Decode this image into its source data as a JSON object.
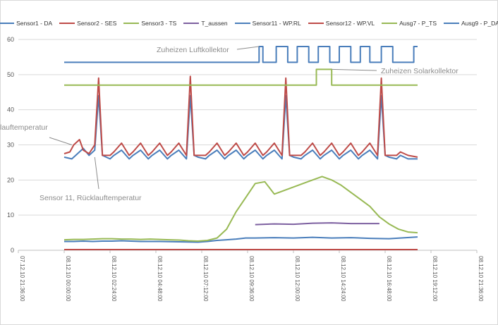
{
  "chart_data": {
    "type": "line",
    "title": "",
    "xlabel": "",
    "ylabel": "",
    "ylim": [
      0,
      60
    ],
    "y_ticks": [
      "0",
      "10",
      "20",
      "30",
      "40",
      "50",
      "60"
    ],
    "x_tick_labels": [
      "07.12.10 21:36:00",
      "08.12.10 00:00:00",
      "08.12.10 02:24:00",
      "08.12.10 04:48:00",
      "08.12.10 07:12:00",
      "08.12.10 09:36:00",
      "08.12.10 12:00:00",
      "08.12.10 14:24:00",
      "08.12.10 16:48:00",
      "08.12.10 19:12:00",
      "08.12.10 21:36:00"
    ],
    "x_range_hours": [
      -2.4,
      21.6
    ],
    "grid": "horizontal",
    "legend_position": "top",
    "series": [
      {
        "name": "Sensor1 - DA",
        "color": "#4a7ebb",
        "x": [
          0,
          0.5,
          1,
          1.5,
          2,
          2.5,
          3,
          3.5,
          4,
          5,
          6,
          7,
          7.5,
          8,
          8.5,
          9,
          9.5,
          10,
          11,
          12,
          13,
          14,
          15,
          16,
          17,
          18.5
        ],
        "y": [
          2.5,
          2.5,
          2.6,
          2.5,
          2.6,
          2.6,
          2.7,
          2.6,
          2.5,
          2.5,
          2.4,
          2.3,
          2.5,
          2.8,
          3.0,
          3.2,
          3.5,
          3.5,
          3.6,
          3.5,
          3.7,
          3.5,
          3.6,
          3.4,
          3.3,
          3.8
        ]
      },
      {
        "name": "Sensor2 - SES",
        "color": "#be4b48",
        "x": [
          0,
          18.5
        ],
        "y": [
          0.2,
          0.2
        ]
      },
      {
        "name": "Sensor3 - TS",
        "color": "#98b954",
        "x": [
          0,
          0.5,
          1,
          1.5,
          2,
          2.5,
          3,
          3.5,
          4,
          4.5,
          5,
          5.5,
          6,
          6.5,
          7,
          7.5,
          8,
          8.5,
          9,
          9.5,
          10,
          10.5,
          11,
          11.5,
          12,
          12.5,
          13,
          13.5,
          14,
          14.5,
          15,
          15.5,
          16,
          16.5,
          17,
          17.5,
          18,
          18.5
        ],
        "y": [
          3.0,
          3.1,
          3.1,
          3.2,
          3.3,
          3.3,
          3.2,
          3.2,
          3.1,
          3.2,
          3.1,
          3.0,
          2.9,
          2.7,
          2.6,
          2.8,
          3.5,
          6.0,
          11.0,
          15.0,
          19.0,
          19.5,
          16.0,
          17.0,
          18.0,
          19.0,
          20.0,
          21.0,
          20.0,
          18.5,
          16.5,
          14.5,
          12.5,
          9.5,
          7.5,
          6.0,
          5.2,
          5.0
        ]
      },
      {
        "name": "T_aussen",
        "color": "#7d60a0",
        "x": [
          10,
          11,
          12,
          13,
          14,
          15,
          16,
          16.5
        ],
        "y": [
          7.3,
          7.5,
          7.4,
          7.7,
          7.8,
          7.6,
          7.6,
          7.6
        ]
      },
      {
        "name": "Sensor11 - WP.RL",
        "color": "#4a7ebb",
        "x": [
          0,
          0.4,
          0.6,
          1.0,
          1.3,
          1.6,
          1.8,
          2.0,
          2.4,
          2.6,
          3.0,
          3.4,
          3.6,
          4.0,
          4.4,
          4.6,
          5.0,
          5.4,
          5.6,
          6.0,
          6.4,
          6.6,
          6.8,
          7.0,
          7.4,
          7.6,
          8.0,
          8.4,
          8.6,
          9.0,
          9.4,
          9.6,
          10.0,
          10.4,
          10.6,
          11.0,
          11.4,
          11.6,
          11.8,
          12.0,
          12.4,
          12.6,
          13.0,
          13.4,
          13.6,
          14.0,
          14.4,
          14.6,
          15.0,
          15.4,
          15.6,
          16.0,
          16.4,
          16.6,
          16.8,
          17.0,
          17.4,
          17.6,
          18.0,
          18.5
        ],
        "y": [
          26.5,
          26.0,
          27.0,
          29.0,
          27.0,
          28.5,
          44.0,
          27.0,
          26.0,
          27.0,
          28.5,
          26.0,
          27.0,
          28.5,
          26.0,
          27.0,
          28.5,
          26.0,
          27.0,
          28.5,
          26.0,
          44.0,
          27.0,
          26.5,
          26.0,
          27.0,
          28.5,
          26.0,
          27.0,
          28.5,
          26.0,
          27.0,
          28.5,
          26.0,
          27.0,
          28.5,
          26.0,
          44.0,
          27.0,
          26.5,
          26.0,
          27.0,
          28.5,
          26.0,
          27.0,
          28.5,
          26.0,
          27.0,
          28.5,
          26.0,
          27.0,
          28.5,
          26.0,
          44.0,
          27.0,
          26.5,
          26.0,
          27.0,
          26.0,
          26.0
        ]
      },
      {
        "name": "Sensor12 - WP.VL",
        "color": "#be4b48",
        "x": [
          0,
          0.3,
          0.5,
          0.8,
          1.0,
          1.3,
          1.6,
          1.8,
          2.0,
          2.4,
          2.6,
          3.0,
          3.4,
          3.6,
          4.0,
          4.4,
          4.6,
          5.0,
          5.4,
          5.6,
          6.0,
          6.4,
          6.6,
          6.8,
          7.0,
          7.4,
          7.6,
          8.0,
          8.4,
          8.6,
          9.0,
          9.4,
          9.6,
          10.0,
          10.4,
          10.6,
          11.0,
          11.4,
          11.6,
          11.8,
          12.0,
          12.4,
          12.6,
          13.0,
          13.4,
          13.6,
          14.0,
          14.4,
          14.6,
          15.0,
          15.4,
          15.6,
          16.0,
          16.4,
          16.6,
          16.8,
          17.0,
          17.4,
          17.6,
          18.0,
          18.5
        ],
        "y": [
          27.5,
          28.0,
          30.0,
          31.5,
          28.5,
          27.5,
          30.0,
          49.0,
          27.0,
          27.0,
          28.0,
          30.5,
          27.0,
          28.0,
          30.5,
          27.0,
          28.0,
          30.5,
          27.0,
          28.0,
          30.5,
          27.0,
          49.5,
          27.0,
          27.0,
          27.0,
          28.0,
          30.5,
          27.0,
          28.0,
          30.5,
          27.0,
          28.0,
          30.5,
          27.0,
          28.0,
          30.5,
          27.0,
          49.0,
          27.0,
          27.0,
          27.0,
          28.0,
          30.5,
          27.0,
          28.0,
          30.5,
          27.0,
          28.0,
          30.5,
          27.0,
          28.0,
          30.5,
          27.0,
          49.0,
          27.0,
          27.0,
          27.0,
          28.0,
          27.0,
          26.5
        ]
      },
      {
        "name": "Ausg7 - P_TS",
        "color": "#98b954",
        "x": [
          0,
          13.2,
          13.2,
          14.0,
          14.0,
          18.5
        ],
        "y": [
          47,
          47,
          51.5,
          51.5,
          47,
          47
        ]
      },
      {
        "name": "Ausg9 - P_DA",
        "color": "#4a7ebb",
        "x": [
          0,
          10.2,
          10.2,
          10.4,
          10.4,
          11.1,
          11.1,
          11.7,
          11.7,
          12.2,
          12.2,
          12.8,
          12.8,
          13.3,
          13.3,
          13.9,
          13.9,
          14.4,
          14.4,
          15.0,
          15.0,
          15.5,
          15.5,
          16.0,
          16.0,
          16.6,
          16.6,
          17.2,
          17.2,
          18.3,
          18.3,
          18.5
        ],
        "y": [
          53.5,
          53.5,
          58,
          58,
          53.5,
          53.5,
          58,
          58,
          53.5,
          53.5,
          58,
          58,
          53.5,
          53.5,
          58,
          58,
          53.5,
          53.5,
          58,
          58,
          53.5,
          53.5,
          58,
          58,
          53.5,
          53.5,
          58,
          58,
          53.5,
          53.5,
          58,
          58
        ]
      }
    ],
    "annotations": [
      {
        "text": "Zuheizen Luftkollektor",
        "point_x": 10.2,
        "point_y": 58
      },
      {
        "text": "Zuheizen Solarkollektor",
        "point_x": 14.0,
        "point_y": 51.5
      },
      {
        "text": "lauftemperatur",
        "point_x": 0.4,
        "point_y": 30
      },
      {
        "text": "Sensor 11, Rücklauftemperatur",
        "point_x": 1.6,
        "point_y": 26.5
      }
    ]
  }
}
